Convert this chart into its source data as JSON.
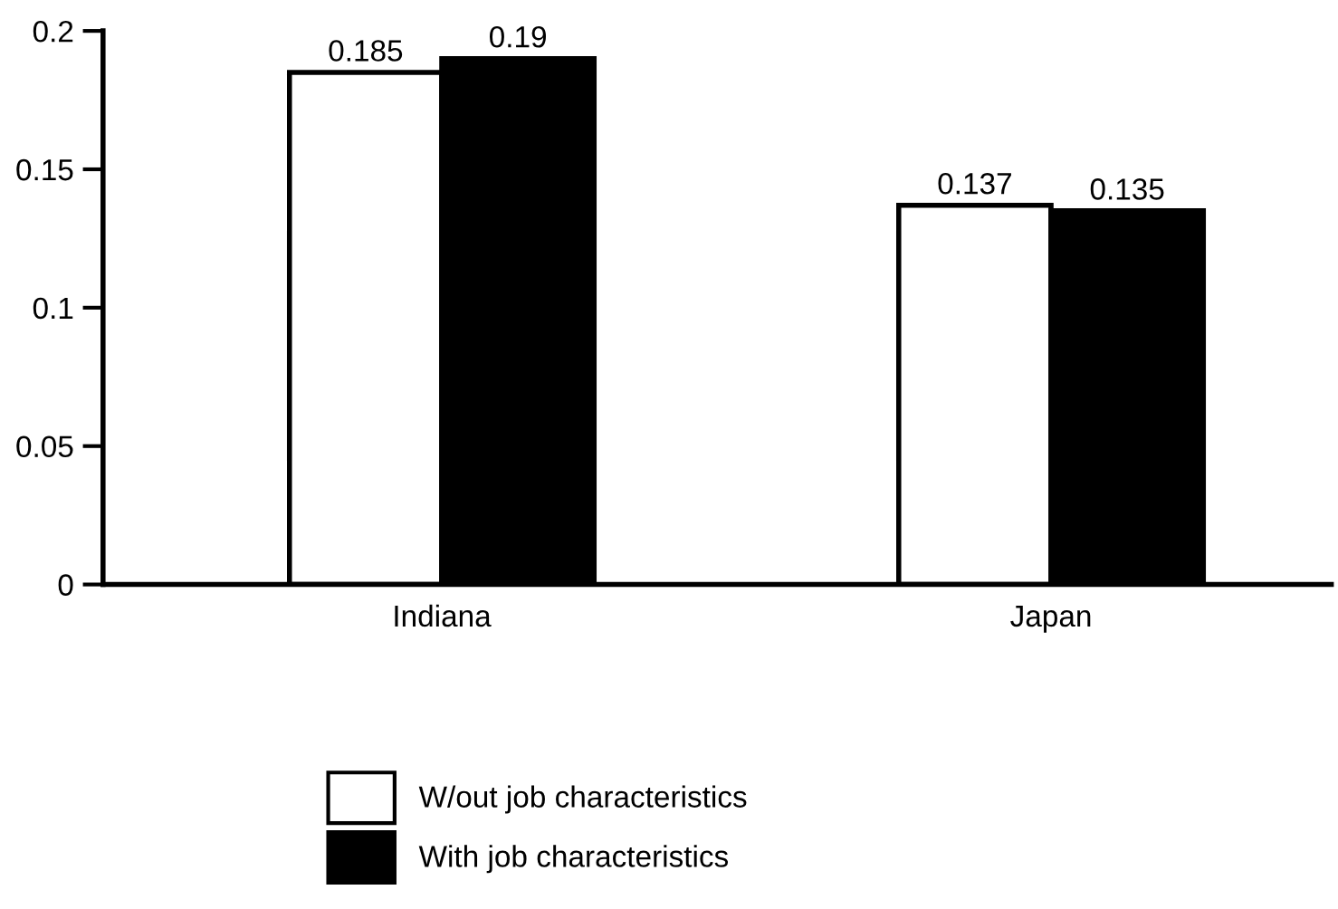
{
  "chart_data": {
    "type": "bar",
    "categories": [
      "Indiana",
      "Japan"
    ],
    "series": [
      {
        "name": "W/out job characteristics",
        "color": "#ffffff",
        "values": [
          0.185,
          0.137
        ]
      },
      {
        "name": "With job characteristics",
        "color": "#000000",
        "values": [
          0.19,
          0.135
        ]
      }
    ],
    "ylim": [
      0,
      0.2
    ],
    "yticks": [
      0,
      0.05,
      0.1,
      0.15,
      0.2
    ],
    "data_labels": true,
    "grid": false,
    "legend": "bottom"
  }
}
